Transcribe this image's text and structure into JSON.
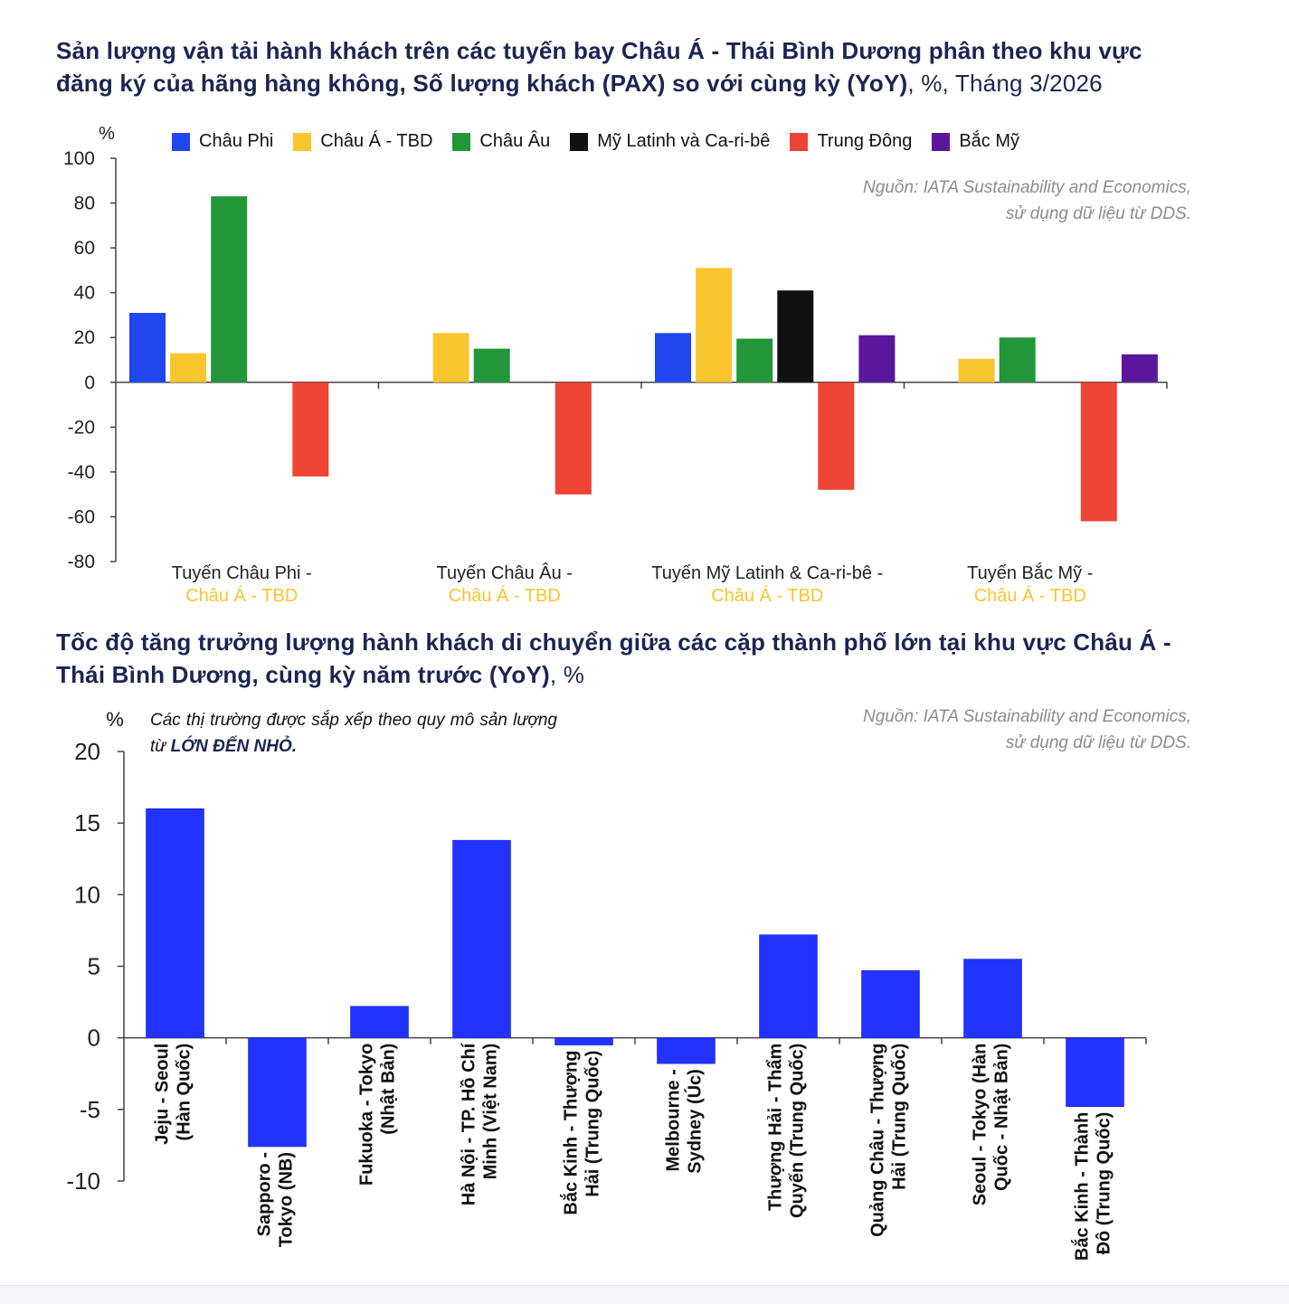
{
  "chart_data": [
    {
      "type": "bar",
      "title": "Sản lượng vận tải hành khách trên các tuyến bay Châu Á - Thái Bình Dương phân theo khu vực đăng ký của hãng hàng không, Số lượng khách (PAX) so với cùng kỳ (YoY)",
      "title_suffix": ", %, Tháng 3/2026",
      "ylabel": "%",
      "ylim": [
        -80,
        100
      ],
      "yticks": [
        "100",
        "80",
        "60",
        "40",
        "20",
        "0",
        "-20",
        "-40",
        "-60",
        "-80"
      ],
      "source": [
        "Nguồn: IATA Sustainability and Economics,",
        "sử dụng dữ liệu từ DDS."
      ],
      "legend_position": "top",
      "categories": [
        {
          "line1": "Tuyến Châu Phi -",
          "line2": "Châu Á - TBD"
        },
        {
          "line1": "Tuyến Châu Âu -",
          "line2": "Châu Á - TBD"
        },
        {
          "line1": "Tuyến Mỹ Latinh & Ca-ri-bê -",
          "line2": "Châu Á - TBD"
        },
        {
          "line1": "Tuyến Bắc Mỹ -",
          "line2": "Châu Á - TBD"
        }
      ],
      "series": [
        {
          "name": "Châu Phi",
          "color": "#2046f0",
          "values": [
            31,
            null,
            22,
            null
          ]
        },
        {
          "name": "Châu Á - TBD",
          "color": "#f9c52e",
          "values": [
            13,
            22,
            51,
            10.5
          ]
        },
        {
          "name": "Châu Âu",
          "color": "#229638",
          "values": [
            83,
            15,
            19.5,
            20
          ]
        },
        {
          "name": "Mỹ Latinh và Ca-ri-bê",
          "color": "#111111",
          "values": [
            null,
            null,
            41,
            null
          ]
        },
        {
          "name": "Trung Đông",
          "color": "#ee4433",
          "values": [
            -42,
            -50,
            -48,
            -62
          ]
        },
        {
          "name": "Bắc Mỹ",
          "color": "#5a179e",
          "values": [
            null,
            null,
            21,
            12.5
          ]
        }
      ]
    },
    {
      "type": "bar",
      "title": "Tốc độ tăng trưởng lượng hành khách di chuyển giữa các cặp thành phố lớn tại khu vực Châu Á - Thái Bình Dương, cùng kỳ năm trước (YoY)",
      "title_suffix": ", %",
      "ylabel": "%",
      "ylim": [
        -10,
        20
      ],
      "yticks": [
        "20",
        "15",
        "10",
        "5",
        "0",
        "-5",
        "-10"
      ],
      "source": [
        "Nguồn: IATA Sustainability and Economics,",
        "sử dụng dữ liệu từ DDS."
      ],
      "note": {
        "text": "Các thị trường được sắp xếp theo quy mô sản lượng từ ",
        "emphasis": "LỚN ĐẾN NHỎ."
      },
      "color": "#2233ff",
      "categories": [
        [
          "Jeju - Seoul",
          "(Hàn Quốc)"
        ],
        [
          "Sapporo -",
          "Tokyo (NB)"
        ],
        [
          "Fukuoka - Tokyo",
          "(Nhật Bản)"
        ],
        [
          "Hà Nội - TP. Hồ Chí",
          "Minh (Việt Nam)"
        ],
        [
          "Bắc Kinh - Thượng",
          "Hải (Trung Quốc)"
        ],
        [
          "Melbourne -",
          "Sydney (Úc)"
        ],
        [
          "Thượng Hải - Thẩm",
          "Quyến (Trung Quốc)"
        ],
        [
          "Quảng Châu - Thượng",
          "Hải (Trung Quốc)"
        ],
        [
          "Seoul - Tokyo (Hàn",
          "Quốc - Nhật Bản)"
        ],
        [
          "Bắc Kinh - Thành",
          "Đô (Trung Quốc)"
        ]
      ],
      "values": [
        16,
        -7.6,
        2.2,
        13.8,
        -0.5,
        -1.8,
        7.2,
        4.7,
        5.5,
        -4.8
      ]
    }
  ]
}
